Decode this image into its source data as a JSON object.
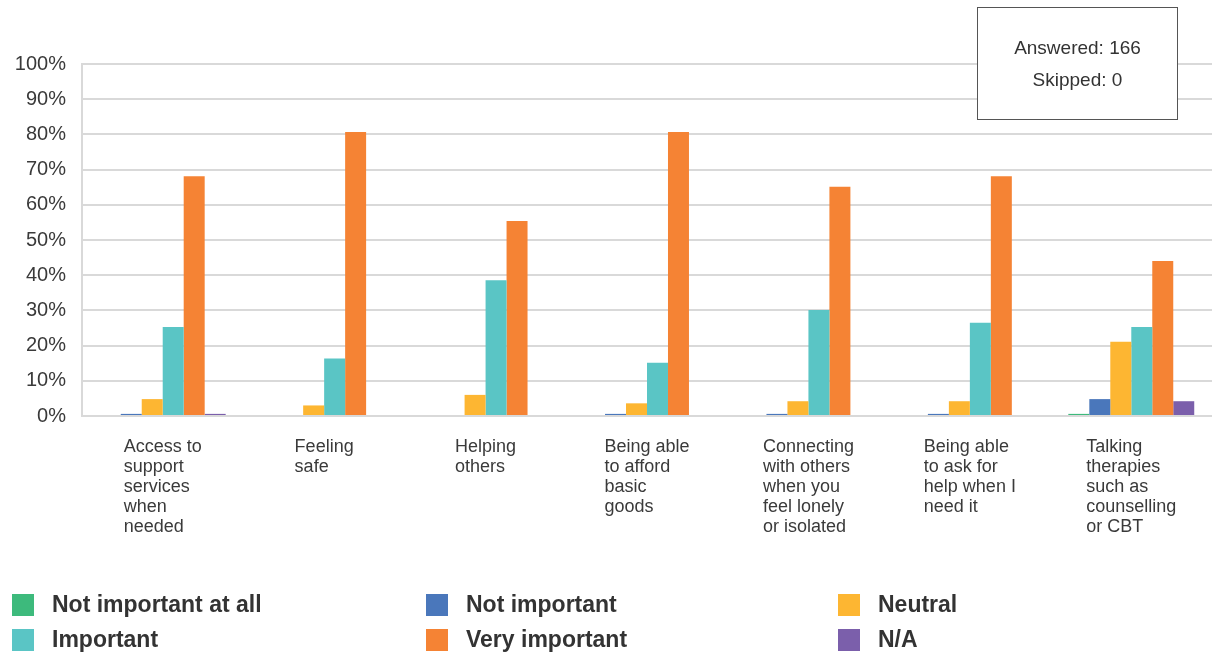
{
  "chart_data": {
    "type": "bar",
    "categories": [
      "Access to support services when needed",
      "Feeling safe",
      "Helping others",
      "Being able to afford basic goods",
      "Connecting with others when you feel lonely or isolated",
      "Being able to ask for help when I need it",
      "Talking therapies such as counselling or CBT"
    ],
    "series": [
      {
        "name": "Not important at all",
        "color": "#3dba7c",
        "values": [
          0,
          0,
          0,
          0,
          0,
          0,
          0.6
        ]
      },
      {
        "name": "Not important",
        "color": "#4a77bb",
        "values": [
          0.6,
          0,
          0,
          0.6,
          0.6,
          0.6,
          4.8
        ]
      },
      {
        "name": "Neutral",
        "color": "#fdb632",
        "values": [
          4.8,
          3.0,
          6.0,
          3.6,
          4.2,
          4.2,
          21.1
        ]
      },
      {
        "name": "Important",
        "color": "#5ac5c5",
        "values": [
          25.3,
          16.3,
          38.6,
          15.1,
          30.1,
          26.5,
          25.3
        ]
      },
      {
        "name": "Very important",
        "color": "#f58334",
        "values": [
          68.1,
          80.7,
          55.4,
          80.7,
          65.1,
          68.1,
          44.0
        ]
      },
      {
        "name": "N/A",
        "color": "#7b5fab",
        "values": [
          0.6,
          0,
          0,
          0,
          0,
          0,
          4.2
        ]
      }
    ],
    "ylim": [
      0,
      100
    ],
    "yticks": [
      {
        "value": 0,
        "label": "0%"
      },
      {
        "value": 10,
        "label": "10%"
      },
      {
        "value": 20,
        "label": "20%"
      },
      {
        "value": 30,
        "label": "30%"
      },
      {
        "value": 40,
        "label": "40%"
      },
      {
        "value": 50,
        "label": "50%"
      },
      {
        "value": 60,
        "label": "60%"
      },
      {
        "value": 70,
        "label": "70%"
      },
      {
        "value": 80,
        "label": "80%"
      },
      {
        "value": 90,
        "label": "90%"
      },
      {
        "value": 100,
        "label": "100%"
      }
    ],
    "grid": "y",
    "legend": "bottom",
    "annotations": [
      "Answered: 166",
      "Skipped: 0"
    ]
  }
}
